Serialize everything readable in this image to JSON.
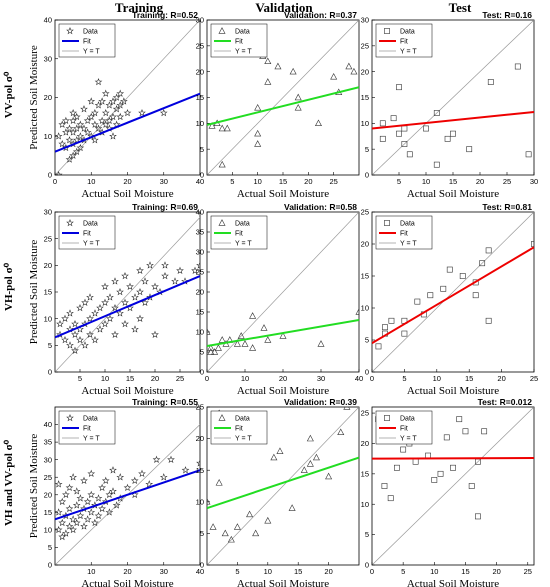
{
  "column_headers": [
    "Training",
    "Validation",
    "Test"
  ],
  "row_labels": [
    "VV-pol σ⁰",
    "VH-pol σ⁰",
    "VH and VV-pol σ⁰"
  ],
  "ylabel": "Predicted Soil Moisture",
  "xlabel": "Actual Soil Moisture",
  "legend": {
    "data": "Data",
    "fit": "Fit",
    "identity": "Y = T"
  },
  "colors": {
    "training": "#0000dd",
    "validation": "#22dd22",
    "test": "#ee0000",
    "identity": "#9a9a9a"
  },
  "chart_data": [
    {
      "type": "scatter",
      "row": 0,
      "col": 0,
      "title": "Training: R=0.52",
      "marker": "star",
      "fit_color": "#0000dd",
      "xlim": [
        0,
        40
      ],
      "ylim": [
        0,
        40
      ],
      "xticks": [
        0,
        10,
        20,
        30,
        40
      ],
      "yticks": [
        0,
        10,
        20,
        30,
        40
      ],
      "fit": [
        [
          0,
          6
        ],
        [
          40,
          21
        ]
      ],
      "points": [
        [
          1,
          0
        ],
        [
          1,
          10
        ],
        [
          2,
          8
        ],
        [
          2,
          13
        ],
        [
          3,
          7
        ],
        [
          3,
          11
        ],
        [
          3,
          14
        ],
        [
          4,
          4
        ],
        [
          4,
          9
        ],
        [
          4,
          12
        ],
        [
          5,
          5
        ],
        [
          5,
          8
        ],
        [
          5,
          11
        ],
        [
          5,
          14
        ],
        [
          5,
          16
        ],
        [
          6,
          6
        ],
        [
          6,
          9
        ],
        [
          6,
          12
        ],
        [
          6,
          15
        ],
        [
          7,
          7
        ],
        [
          7,
          10
        ],
        [
          7,
          13
        ],
        [
          8,
          9
        ],
        [
          8,
          12
        ],
        [
          8,
          17
        ],
        [
          9,
          11
        ],
        [
          9,
          14
        ],
        [
          10,
          10
        ],
        [
          10,
          15
        ],
        [
          10,
          19
        ],
        [
          11,
          9
        ],
        [
          11,
          13
        ],
        [
          11,
          16
        ],
        [
          12,
          12
        ],
        [
          12,
          18
        ],
        [
          12,
          24
        ],
        [
          13,
          11
        ],
        [
          13,
          14
        ],
        [
          13,
          19
        ],
        [
          14,
          13
        ],
        [
          14,
          16
        ],
        [
          14,
          21
        ],
        [
          15,
          12
        ],
        [
          15,
          14
        ],
        [
          15,
          18
        ],
        [
          16,
          10
        ],
        [
          16,
          15
        ],
        [
          16,
          19
        ],
        [
          17,
          13
        ],
        [
          17,
          17
        ],
        [
          17,
          20
        ],
        [
          18,
          15
        ],
        [
          18,
          18
        ],
        [
          18,
          21
        ],
        [
          19,
          19
        ],
        [
          20,
          16
        ],
        [
          24,
          16
        ],
        [
          30,
          16
        ]
      ]
    },
    {
      "type": "scatter",
      "row": 0,
      "col": 1,
      "title": "Validation: R=0.37",
      "marker": "triangle",
      "fit_color": "#22dd22",
      "xlim": [
        0,
        30
      ],
      "ylim": [
        0,
        30
      ],
      "xticks": [
        5,
        10,
        15,
        20,
        25
      ],
      "yticks": [
        0,
        5,
        10,
        15,
        20,
        25,
        30
      ],
      "fit": [
        [
          0,
          9.7
        ],
        [
          30,
          17
        ]
      ],
      "points": [
        [
          1,
          9.5
        ],
        [
          2,
          10
        ],
        [
          3,
          2
        ],
        [
          3,
          9
        ],
        [
          4,
          9
        ],
        [
          10,
          8
        ],
        [
          10,
          13
        ],
        [
          10,
          6
        ],
        [
          11,
          23
        ],
        [
          12,
          22
        ],
        [
          12,
          18
        ],
        [
          14,
          21
        ],
        [
          17,
          20
        ],
        [
          18,
          15
        ],
        [
          18,
          13
        ],
        [
          22,
          10
        ],
        [
          25,
          19
        ],
        [
          26,
          16
        ],
        [
          28,
          21
        ],
        [
          29,
          20
        ]
      ]
    },
    {
      "type": "scatter",
      "row": 0,
      "col": 2,
      "title": "Test: R=0.16",
      "marker": "square",
      "fit_color": "#ee0000",
      "xlim": [
        0,
        30
      ],
      "ylim": [
        0,
        30
      ],
      "xticks": [
        5,
        10,
        15,
        20,
        25,
        30
      ],
      "yticks": [
        0,
        5,
        10,
        15,
        20,
        25,
        30
      ],
      "fit": [
        [
          0,
          9
        ],
        [
          30,
          12.2
        ]
      ],
      "points": [
        [
          2,
          7
        ],
        [
          2,
          10
        ],
        [
          4,
          11
        ],
        [
          5,
          8
        ],
        [
          5,
          17
        ],
        [
          6,
          6
        ],
        [
          6,
          9
        ],
        [
          7,
          4
        ],
        [
          10,
          9
        ],
        [
          12,
          2
        ],
        [
          12,
          12
        ],
        [
          14,
          7
        ],
        [
          15,
          8
        ],
        [
          18,
          5
        ],
        [
          22,
          18
        ],
        [
          27,
          21
        ],
        [
          29,
          4
        ]
      ]
    },
    {
      "type": "scatter",
      "row": 1,
      "col": 0,
      "title": "Training: R=0.69",
      "marker": "star",
      "fit_color": "#0000dd",
      "xlim": [
        0,
        29
      ],
      "ylim": [
        0,
        30
      ],
      "xticks": [
        5,
        10,
        15,
        20,
        25
      ],
      "yticks": [
        0,
        5,
        10,
        15,
        20,
        25,
        30
      ],
      "fit": [
        [
          0,
          6.5
        ],
        [
          29,
          18
        ]
      ],
      "points": [
        [
          1,
          7
        ],
        [
          1,
          9
        ],
        [
          2,
          6
        ],
        [
          2,
          10
        ],
        [
          3,
          5
        ],
        [
          3,
          8
        ],
        [
          3,
          11
        ],
        [
          4,
          4
        ],
        [
          4,
          7
        ],
        [
          4,
          9
        ],
        [
          5,
          6
        ],
        [
          5,
          8
        ],
        [
          5,
          12
        ],
        [
          6,
          5
        ],
        [
          6,
          9
        ],
        [
          6,
          13
        ],
        [
          7,
          7
        ],
        [
          7,
          10
        ],
        [
          7,
          14
        ],
        [
          8,
          6
        ],
        [
          8,
          11
        ],
        [
          9,
          8
        ],
        [
          9,
          12
        ],
        [
          10,
          9
        ],
        [
          10,
          13
        ],
        [
          10,
          16
        ],
        [
          11,
          10
        ],
        [
          11,
          14
        ],
        [
          12,
          7
        ],
        [
          12,
          12
        ],
        [
          12,
          17
        ],
        [
          13,
          11
        ],
        [
          13,
          15
        ],
        [
          14,
          9
        ],
        [
          14,
          13
        ],
        [
          14,
          18
        ],
        [
          15,
          12
        ],
        [
          15,
          16
        ],
        [
          16,
          8
        ],
        [
          16,
          14
        ],
        [
          17,
          10
        ],
        [
          17,
          15
        ],
        [
          17,
          19
        ],
        [
          18,
          13
        ],
        [
          18,
          17
        ],
        [
          19,
          14
        ],
        [
          19,
          20
        ],
        [
          20,
          7
        ],
        [
          20,
          16
        ],
        [
          21,
          15
        ],
        [
          22,
          18
        ],
        [
          22,
          20
        ],
        [
          24,
          17
        ],
        [
          25,
          19
        ],
        [
          26,
          17
        ],
        [
          28,
          19
        ],
        [
          29,
          20
        ]
      ]
    },
    {
      "type": "scatter",
      "row": 1,
      "col": 1,
      "title": "Validation: R=0.58",
      "marker": "triangle",
      "fit_color": "#22dd22",
      "xlim": [
        0,
        40
      ],
      "ylim": [
        0,
        40
      ],
      "xticks": [
        0,
        10,
        20,
        30,
        40
      ],
      "yticks": [
        0,
        5,
        10,
        15,
        20,
        25,
        30,
        35,
        40
      ],
      "fit": [
        [
          0,
          6.5
        ],
        [
          40,
          13
        ]
      ],
      "points": [
        [
          0,
          10
        ],
        [
          1,
          6
        ],
        [
          1,
          5
        ],
        [
          2,
          5
        ],
        [
          3,
          6
        ],
        [
          4,
          8
        ],
        [
          5,
          7
        ],
        [
          6,
          8
        ],
        [
          8,
          7
        ],
        [
          9,
          9
        ],
        [
          10,
          7
        ],
        [
          12,
          6
        ],
        [
          12,
          14
        ],
        [
          15,
          11
        ],
        [
          16,
          8
        ],
        [
          20,
          9
        ],
        [
          30,
          7
        ],
        [
          40,
          15
        ]
      ]
    },
    {
      "type": "scatter",
      "row": 1,
      "col": 2,
      "title": "Test: R=0.81",
      "marker": "square",
      "fit_color": "#ee0000",
      "xlim": [
        0,
        25
      ],
      "ylim": [
        0,
        25
      ],
      "xticks": [
        0,
        5,
        10,
        15,
        20,
        25
      ],
      "yticks": [
        0,
        5,
        10,
        15,
        20,
        25
      ],
      "fit": [
        [
          0,
          4.5
        ],
        [
          25,
          19.5
        ]
      ],
      "points": [
        [
          1,
          4
        ],
        [
          2,
          6
        ],
        [
          2,
          7
        ],
        [
          3,
          8
        ],
        [
          5,
          6
        ],
        [
          5,
          8
        ],
        [
          7,
          11
        ],
        [
          8,
          9
        ],
        [
          9,
          12
        ],
        [
          11,
          13
        ],
        [
          12,
          16
        ],
        [
          14,
          15
        ],
        [
          16,
          12
        ],
        [
          16,
          14
        ],
        [
          17,
          17
        ],
        [
          18,
          19
        ],
        [
          18,
          8
        ],
        [
          25,
          20
        ]
      ]
    },
    {
      "type": "scatter",
      "row": 2,
      "col": 0,
      "title": "Training: R=0.55",
      "marker": "star",
      "fit_color": "#0000dd",
      "xlim": [
        0,
        40
      ],
      "ylim": [
        0,
        45
      ],
      "xticks": [
        10,
        20,
        30,
        40
      ],
      "yticks": [
        0,
        5,
        10,
        15,
        20,
        25,
        30,
        35,
        40
      ],
      "fit": [
        [
          0,
          13
        ],
        [
          40,
          27
        ]
      ],
      "points": [
        [
          1,
          10
        ],
        [
          1,
          15
        ],
        [
          1,
          23
        ],
        [
          2,
          8
        ],
        [
          2,
          12
        ],
        [
          2,
          18
        ],
        [
          3,
          9
        ],
        [
          3,
          14
        ],
        [
          3,
          20
        ],
        [
          4,
          11
        ],
        [
          4,
          16
        ],
        [
          4,
          22
        ],
        [
          5,
          10
        ],
        [
          5,
          13
        ],
        [
          5,
          25
        ],
        [
          6,
          12
        ],
        [
          6,
          17
        ],
        [
          6,
          21
        ],
        [
          7,
          14
        ],
        [
          7,
          19
        ],
        [
          8,
          11
        ],
        [
          8,
          16
        ],
        [
          8,
          24
        ],
        [
          9,
          13
        ],
        [
          9,
          18
        ],
        [
          10,
          15
        ],
        [
          10,
          20
        ],
        [
          10,
          26
        ],
        [
          11,
          12
        ],
        [
          11,
          17
        ],
        [
          12,
          14
        ],
        [
          12,
          19
        ],
        [
          12,
          41
        ],
        [
          13,
          16
        ],
        [
          13,
          22
        ],
        [
          14,
          18
        ],
        [
          14,
          24
        ],
        [
          15,
          15
        ],
        [
          15,
          20
        ],
        [
          16,
          21
        ],
        [
          16,
          27
        ],
        [
          17,
          17
        ],
        [
          18,
          19
        ],
        [
          18,
          25
        ],
        [
          20,
          22
        ],
        [
          22,
          20
        ],
        [
          22,
          24
        ],
        [
          24,
          26
        ],
        [
          26,
          23
        ],
        [
          28,
          30
        ],
        [
          30,
          25
        ],
        [
          32,
          30
        ],
        [
          36,
          27
        ],
        [
          40,
          29
        ]
      ]
    },
    {
      "type": "scatter",
      "row": 2,
      "col": 1,
      "title": "Validation: R=0.39",
      "marker": "triangle",
      "fit_color": "#22dd22",
      "xlim": [
        0,
        25
      ],
      "ylim": [
        0,
        25
      ],
      "xticks": [
        5,
        10,
        15,
        20
      ],
      "yticks": [
        0,
        5,
        10,
        15,
        20,
        25
      ],
      "fit": [
        [
          0,
          9
        ],
        [
          25,
          17
        ]
      ],
      "points": [
        [
          0,
          10
        ],
        [
          1,
          6
        ],
        [
          2,
          24
        ],
        [
          2,
          13
        ],
        [
          3,
          5
        ],
        [
          4,
          4
        ],
        [
          5,
          6
        ],
        [
          7,
          8
        ],
        [
          8,
          5
        ],
        [
          10,
          7
        ],
        [
          11,
          17
        ],
        [
          12,
          18
        ],
        [
          14,
          9
        ],
        [
          16,
          15
        ],
        [
          17,
          20
        ],
        [
          17,
          16
        ],
        [
          18,
          17
        ],
        [
          20,
          14
        ],
        [
          22,
          21
        ],
        [
          23,
          25
        ]
      ]
    },
    {
      "type": "scatter",
      "row": 2,
      "col": 2,
      "title": "Test: R=0.012",
      "marker": "square",
      "fit_color": "#ee0000",
      "xlim": [
        0,
        26
      ],
      "ylim": [
        0,
        26
      ],
      "xticks": [
        0,
        5,
        10,
        15,
        20,
        25
      ],
      "yticks": [
        0,
        5,
        10,
        15,
        20,
        25
      ],
      "fit": [
        [
          0,
          17.5
        ],
        [
          26,
          17.6
        ]
      ],
      "points": [
        [
          1,
          24
        ],
        [
          2,
          13
        ],
        [
          3,
          11
        ],
        [
          4,
          16
        ],
        [
          5,
          19
        ],
        [
          6,
          20
        ],
        [
          7,
          17
        ],
        [
          9,
          18
        ],
        [
          10,
          14
        ],
        [
          11,
          15
        ],
        [
          12,
          21
        ],
        [
          13,
          16
        ],
        [
          14,
          24
        ],
        [
          15,
          22
        ],
        [
          16,
          13
        ],
        [
          17,
          17
        ],
        [
          17,
          8
        ],
        [
          18,
          22
        ]
      ]
    }
  ]
}
